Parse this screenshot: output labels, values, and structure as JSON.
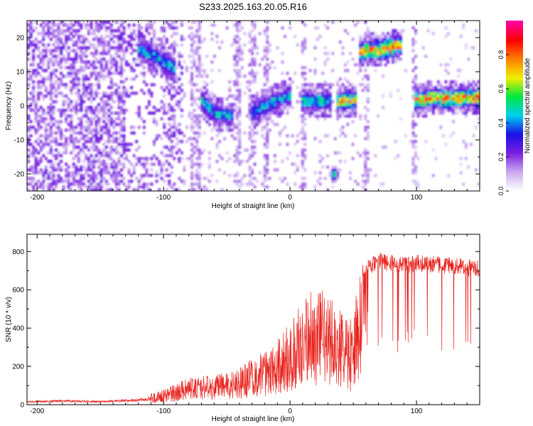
{
  "figure": {
    "title": "S233.2025.163.20.05.R16"
  },
  "chart_data": [
    {
      "type": "heatmap",
      "xlabel": "Height of straight line (km)",
      "ylabel": "Frequency (Hz)",
      "xlim": [
        -208,
        150
      ],
      "ylim": [
        -25,
        25
      ],
      "xticks": [
        -200,
        -100,
        0,
        100
      ],
      "yticks": [
        -20,
        -10,
        0,
        10,
        20
      ],
      "colorbar": {
        "label": "Normalized spectral amplitude",
        "range": [
          0,
          1
        ],
        "ticks": [
          "0.0",
          "0.2",
          "0.4",
          "0.6",
          "0.8"
        ],
        "colors": [
          "#ffffff",
          "#c9a8ee",
          "#7a1ee0",
          "#1a10e8",
          "#00d0f0",
          "#00e640",
          "#f0f000",
          "#ff8000",
          "#ff0000",
          "#ff00a0"
        ]
      },
      "ridges": [
        {
          "x": [
            -120,
            -110,
            -100,
            -90
          ],
          "y": [
            17,
            15,
            13,
            11
          ],
          "peak": 0.55
        },
        {
          "x": [
            -70,
            -60,
            -45
          ],
          "y": [
            2,
            -2,
            -3
          ],
          "peak": 0.55
        },
        {
          "x": [
            -30,
            -15,
            0
          ],
          "y": [
            -2,
            1,
            3
          ],
          "peak": 0.55
        },
        {
          "x": [
            8,
            20,
            32
          ],
          "y": [
            1.5,
            1.5,
            1.5
          ],
          "peak": 0.6
        },
        {
          "x": [
            36,
            45,
            52
          ],
          "y": [
            1.5,
            1.5,
            1.5
          ],
          "peak": 0.85
        },
        {
          "x": [
            55,
            70,
            88
          ],
          "y": [
            16,
            16.5,
            18
          ],
          "peak": 0.95
        },
        {
          "x": [
            98,
            110,
            150
          ],
          "y": [
            1.5,
            2.2,
            2.5
          ],
          "peak": 0.95
        },
        {
          "x": [
            35
          ],
          "y": [
            -20
          ],
          "peak": 0.6
        }
      ]
    },
    {
      "type": "line",
      "xlabel": "Height of straight line (km)",
      "ylabel": "SNR (10 * v/v)",
      "xlim": [
        -208,
        150
      ],
      "ylim": [
        0,
        890
      ],
      "xticks": [
        -200,
        -100,
        0,
        100
      ],
      "yticks": [
        0,
        200,
        400,
        600,
        800
      ],
      "color": "#e8231e",
      "trend": {
        "x": [
          -208,
          -180,
          -150,
          -120,
          -100,
          -80,
          -60,
          -40,
          -20,
          0,
          10,
          20,
          30,
          40,
          50,
          57,
          70,
          90,
          100,
          120,
          150
        ],
        "y": [
          20,
          25,
          22,
          30,
          60,
          110,
          120,
          150,
          220,
          330,
          420,
          500,
          430,
          400,
          330,
          720,
          780,
          760,
          770,
          760,
          740
        ]
      }
    }
  ]
}
